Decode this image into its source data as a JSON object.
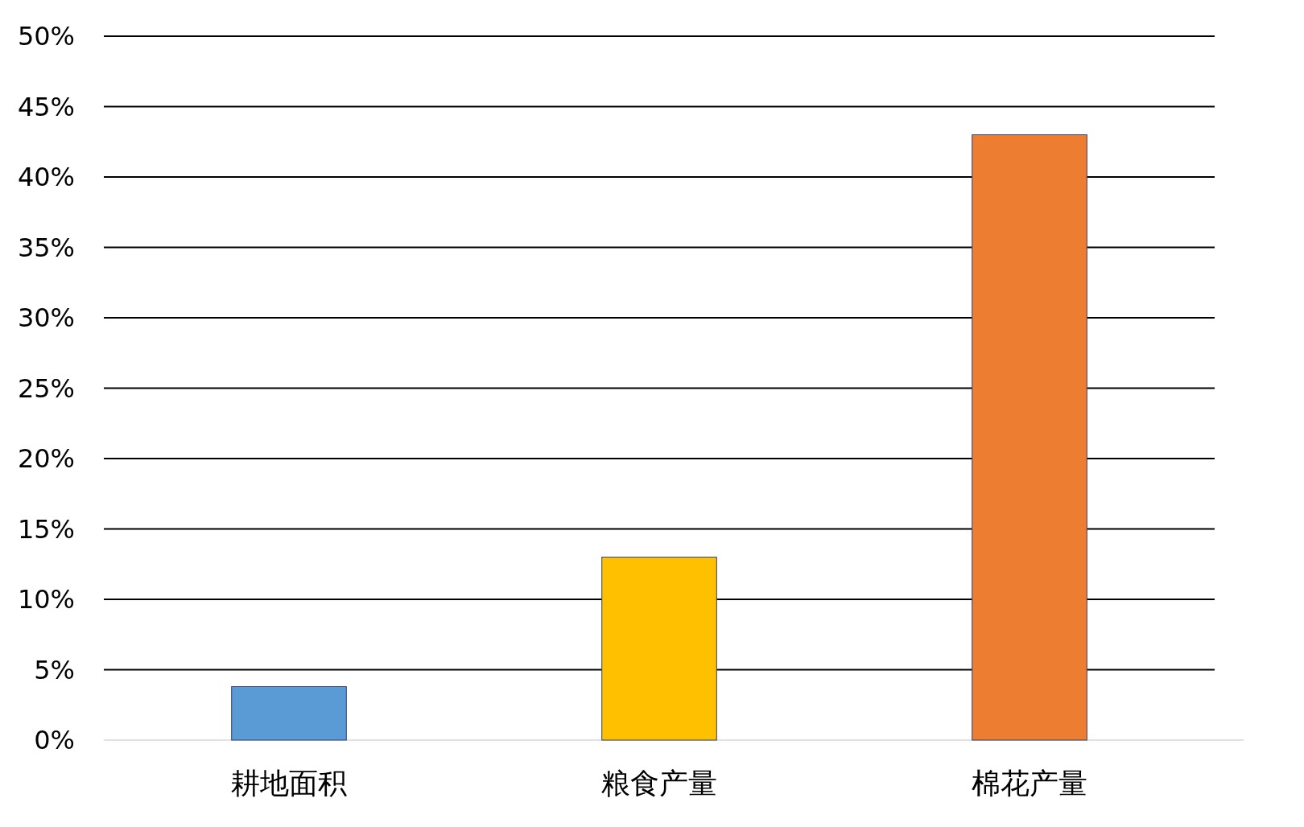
{
  "chart_data": {
    "type": "bar",
    "categories": [
      "耕地面积",
      "粮食产量",
      "棉花产量"
    ],
    "values": [
      3.8,
      13,
      43
    ],
    "colors": [
      "#5b9bd5",
      "#ffc000",
      "#ed7d31"
    ],
    "ylim": [
      0,
      50
    ],
    "yticks": [
      {
        "value": 0,
        "label": "0%"
      },
      {
        "value": 5,
        "label": "5%"
      },
      {
        "value": 10,
        "label": "10%"
      },
      {
        "value": 15,
        "label": "15%"
      },
      {
        "value": 20,
        "label": "20%"
      },
      {
        "value": 25,
        "label": "25%"
      },
      {
        "value": 30,
        "label": "30%"
      },
      {
        "value": 35,
        "label": "35%"
      },
      {
        "value": 40,
        "label": "40%"
      },
      {
        "value": 45,
        "label": "45%"
      },
      {
        "value": 50,
        "label": "50%"
      }
    ],
    "grid": "y"
  }
}
